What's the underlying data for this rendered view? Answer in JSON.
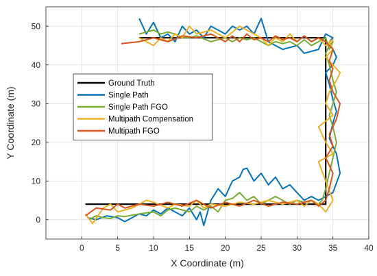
{
  "chart_data": {
    "type": "line",
    "title": "",
    "xlabel": "X Coordinate (m)",
    "ylabel": "Y Coordinate (m)",
    "xlim": [
      -5,
      40
    ],
    "ylim": [
      -5,
      55
    ],
    "xticks": [
      0,
      5,
      10,
      15,
      20,
      25,
      30,
      35,
      40
    ],
    "yticks": [
      0,
      10,
      20,
      30,
      40,
      50
    ],
    "grid": true,
    "legend_position": "center-left",
    "series": [
      {
        "name": "Ground Truth",
        "color": "#000000",
        "x": [
          0.5,
          34,
          34,
          8
        ],
        "y": [
          4,
          4,
          47,
          47
        ]
      },
      {
        "name": "Single Path",
        "color": "#0072BD",
        "x": [
          0.8,
          2,
          3.5,
          5,
          6,
          8,
          9,
          10,
          11,
          12,
          13,
          14,
          15,
          16,
          16.5,
          17,
          18,
          19,
          20,
          21,
          22,
          22.5,
          23,
          24,
          25,
          26,
          27,
          28,
          29,
          30,
          31,
          32,
          33,
          34,
          35,
          36,
          35.5,
          34.5,
          35,
          35.5,
          35,
          34.5,
          34,
          35,
          35.5,
          35,
          34.5,
          35,
          34,
          33,
          31,
          30,
          28,
          26,
          25,
          24,
          23,
          22,
          21,
          20,
          18,
          17,
          16,
          15,
          14,
          13,
          12,
          11,
          10,
          9,
          8
        ],
        "y": [
          0.5,
          0,
          1,
          0.5,
          -0.5,
          1.5,
          1,
          2.5,
          1.5,
          3,
          2,
          1,
          3,
          0,
          2,
          -1.5,
          5,
          8,
          6,
          10,
          11,
          13,
          13.3,
          10,
          12,
          9,
          11,
          8,
          9,
          7,
          5,
          6,
          5,
          6,
          7,
          12,
          17,
          21,
          25,
          28,
          31,
          35,
          38,
          40,
          42,
          44,
          46,
          47,
          48,
          44,
          43,
          45,
          44,
          46,
          52,
          48,
          50,
          49,
          50,
          48,
          50,
          47,
          49,
          48,
          50,
          46,
          48,
          47,
          51,
          48,
          52
        ]
      },
      {
        "name": "Single Path FGO",
        "color": "#77AC30",
        "x": [
          1,
          2,
          3,
          4,
          5,
          6,
          8,
          10,
          11,
          12,
          13,
          15,
          16,
          17,
          18,
          19,
          20,
          21,
          22,
          23,
          24,
          25,
          26,
          27,
          28,
          29,
          30,
          31,
          32,
          33,
          33.5,
          34,
          34.5,
          35,
          35.5,
          35,
          34.5,
          35,
          35.5,
          35,
          34.5,
          34,
          34.5,
          35,
          34.5,
          34,
          33,
          32,
          31,
          30,
          29,
          28,
          27,
          26,
          25,
          24,
          23,
          22,
          21,
          20,
          18,
          16,
          15,
          14,
          13,
          12,
          11,
          10,
          8
        ],
        "y": [
          0,
          1,
          0.5,
          0.3,
          1,
          0.8,
          1.5,
          2,
          1,
          2.5,
          3,
          2,
          3.5,
          2.5,
          3.5,
          2,
          5,
          5.5,
          7,
          5,
          6,
          4,
          5,
          6,
          5,
          4,
          5,
          4.5,
          5,
          4,
          5,
          8,
          12,
          16,
          20,
          24,
          27,
          30,
          33,
          36,
          40,
          43,
          45,
          46,
          44,
          47,
          46,
          45,
          46.5,
          45,
          46,
          45.5,
          46,
          45,
          46,
          47,
          46.5,
          47,
          46,
          47,
          46,
          47.5,
          47,
          47,
          48,
          48.5,
          48,
          49,
          48
        ]
      },
      {
        "name": "Multipath Compensation",
        "color": "#EDB120",
        "x": [
          0.5,
          1.5,
          3,
          4,
          5,
          7,
          8,
          9,
          10,
          12,
          13,
          15,
          16,
          17,
          18,
          20,
          22,
          24,
          26,
          28,
          30,
          31,
          32,
          33,
          34,
          35,
          34,
          33,
          35,
          34,
          33,
          35,
          34,
          34.5,
          35.5,
          36,
          35,
          34,
          35,
          34.5,
          35,
          34,
          33,
          32,
          31,
          30,
          29,
          28,
          27,
          26,
          25,
          24,
          22,
          20,
          18,
          16,
          15,
          14,
          13,
          12,
          11,
          10,
          9,
          8
        ],
        "y": [
          1.5,
          -1,
          3,
          4,
          2,
          3,
          4,
          5,
          4.5,
          3,
          4,
          3.5,
          5,
          3,
          4,
          3.5,
          4.5,
          4,
          5,
          4,
          5,
          3.5,
          5,
          4,
          2,
          5,
          10,
          15,
          17,
          20,
          24,
          27,
          30,
          33,
          36,
          38,
          40,
          42,
          44,
          46,
          46.5,
          45,
          47,
          46,
          47.5,
          46,
          48,
          46,
          47,
          45,
          47,
          48,
          50,
          47,
          49,
          48,
          50,
          47,
          48,
          46,
          47,
          45,
          46,
          47
        ]
      },
      {
        "name": "Multipath FGO",
        "color": "#D95319",
        "x": [
          0.5,
          2,
          4,
          5,
          6,
          8,
          10,
          12,
          14,
          16,
          18,
          20,
          22,
          24,
          26,
          28,
          30,
          32,
          33,
          34,
          34.5,
          35,
          34,
          35,
          34.5,
          35.5,
          36,
          35,
          34.5,
          35,
          34.5,
          35,
          34,
          33,
          32,
          31,
          30,
          29,
          28,
          27,
          26,
          25,
          24,
          23,
          22,
          21,
          20,
          18,
          16,
          14,
          12,
          10,
          8,
          5.5
        ],
        "y": [
          1,
          3,
          2.5,
          4,
          3,
          4,
          3.5,
          4.5,
          3.5,
          5,
          3,
          4.5,
          3.5,
          5,
          3.5,
          4.5,
          4,
          5,
          3.5,
          5,
          8,
          12,
          16,
          19,
          22,
          26,
          30,
          33,
          36,
          39,
          41,
          44,
          46,
          47,
          46,
          47.5,
          46,
          47,
          46.5,
          47.5,
          46,
          47,
          46.5,
          48,
          46,
          47.5,
          46,
          48,
          47,
          47.5,
          46,
          47,
          46,
          45.5
        ]
      }
    ]
  }
}
